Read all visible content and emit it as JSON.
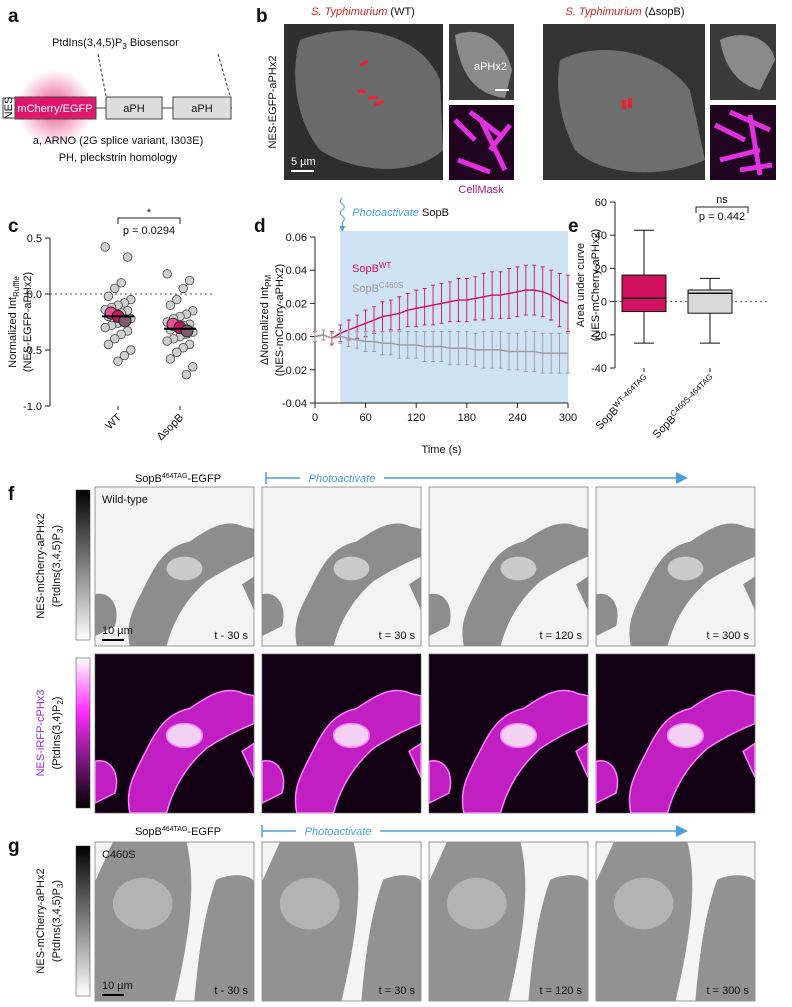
{
  "panel_letters": [
    "a",
    "b",
    "c",
    "d",
    "e",
    "f",
    "g"
  ],
  "panel_a": {
    "title": [
      "PtdIns(3,4,5)P",
      "3",
      " Biosensor"
    ],
    "nes": "NES",
    "fluor": "mCherry/EGFP",
    "domains": [
      "aPH",
      "aPH"
    ],
    "caption": [
      "a, ARNO (2G splice variant, I303E)",
      "PH, pleckstrin homology"
    ]
  },
  "panel_b": {
    "conditions": [
      {
        "species": "S. Typhimurium",
        "strain": " (WT)"
      },
      {
        "species": "S. Typhimurium",
        "strain": " (ΔsopB)"
      }
    ],
    "row_label": "NES-EGFP-aPHx2",
    "inset_labels": [
      "aPHx2",
      "CellMask"
    ],
    "scale_bar": "5 µm"
  },
  "chart_data": [
    {
      "type": "dot",
      "categories": [
        "WT",
        "ΔsopB"
      ],
      "points": [
        [
          0.42,
          0.33,
          0.1,
          0.05,
          -0.02,
          -0.05,
          -0.08,
          -0.1,
          -0.12,
          -0.14,
          -0.15,
          -0.17,
          -0.18,
          -0.2,
          -0.22,
          -0.24,
          -0.26,
          -0.28,
          -0.3,
          -0.33,
          -0.36,
          -0.4,
          -0.45,
          -0.5,
          -0.55,
          -0.6
        ],
        [
          0.18,
          0.12,
          0.05,
          -0.05,
          -0.1,
          -0.15,
          -0.18,
          -0.2,
          -0.22,
          -0.25,
          -0.27,
          -0.28,
          -0.3,
          -0.32,
          -0.34,
          -0.36,
          -0.38,
          -0.4,
          -0.42,
          -0.45,
          -0.48,
          -0.52,
          -0.58,
          -0.65,
          -0.72
        ]
      ],
      "replicate_means": [
        [
          -0.17,
          -0.2,
          -0.24
        ],
        [
          -0.27,
          -0.3,
          -0.33
        ]
      ],
      "replicate_colors": [
        "#e84f95",
        "#c8185e",
        "#7d5a6c"
      ],
      "means": [
        -0.2,
        -0.31
      ],
      "ylim": [
        -1.0,
        0.5
      ],
      "yticks": [
        {
          "value": -1,
          "label": "-1.0"
        },
        {
          "value": -0.5,
          "label": "-0.5"
        },
        {
          "value": 0,
          "label": "0.0"
        },
        {
          "value": 0.5,
          "label": "0.5"
        }
      ],
      "ylabel": [
        "Normalized Int",
        "Ruffle"
      ],
      "ylabel2": "(NES-EGFP-aPHx2)",
      "reference_line": 0,
      "significance": "*",
      "p_value": "p = 0.0294"
    },
    {
      "type": "line",
      "x": [
        0,
        10,
        20,
        30,
        40,
        50,
        60,
        70,
        80,
        90,
        100,
        110,
        120,
        130,
        140,
        150,
        160,
        170,
        180,
        190,
        200,
        210,
        220,
        230,
        240,
        250,
        260,
        270,
        280,
        290,
        300
      ],
      "series": [
        {
          "name": "SopB",
          "name_sup": "WT",
          "color": "#d0105f",
          "values": [
            0,
            0.001,
            -0.001,
            0.002,
            0.004,
            0.006,
            0.008,
            0.01,
            0.012,
            0.013,
            0.014,
            0.016,
            0.017,
            0.018,
            0.019,
            0.02,
            0.021,
            0.022,
            0.022,
            0.023,
            0.024,
            0.025,
            0.025,
            0.026,
            0.027,
            0.028,
            0.028,
            0.027,
            0.025,
            0.022,
            0.02
          ],
          "errors": [
            0.003,
            0.003,
            0.004,
            0.005,
            0.006,
            0.007,
            0.008,
            0.008,
            0.009,
            0.009,
            0.01,
            0.01,
            0.011,
            0.011,
            0.012,
            0.012,
            0.012,
            0.013,
            0.013,
            0.013,
            0.014,
            0.014,
            0.014,
            0.015,
            0.015,
            0.015,
            0.015,
            0.015,
            0.015,
            0.016,
            0.017
          ]
        },
        {
          "name": "SopB",
          "name_sup": "C460S",
          "color": "#9a9a9a",
          "values": [
            0,
            0.001,
            -0.001,
            0,
            -0.001,
            -0.002,
            -0.003,
            -0.003,
            -0.004,
            -0.004,
            -0.005,
            -0.005,
            -0.005,
            -0.006,
            -0.006,
            -0.006,
            -0.007,
            -0.007,
            -0.007,
            -0.008,
            -0.008,
            -0.008,
            -0.008,
            -0.009,
            -0.009,
            -0.009,
            -0.009,
            -0.01,
            -0.01,
            -0.01,
            -0.01
          ],
          "errors": [
            0.003,
            0.003,
            0.003,
            0.004,
            0.005,
            0.005,
            0.006,
            0.006,
            0.007,
            0.007,
            0.008,
            0.008,
            0.008,
            0.009,
            0.009,
            0.009,
            0.01,
            0.01,
            0.01,
            0.01,
            0.011,
            0.011,
            0.011,
            0.011,
            0.011,
            0.012,
            0.012,
            0.012,
            0.012,
            0.012,
            0.012
          ]
        }
      ],
      "xlim": [
        0,
        300
      ],
      "xticks": [
        0,
        60,
        120,
        180,
        240,
        300
      ],
      "ylim": [
        -0.04,
        0.06
      ],
      "yticks": [
        -0.04,
        -0.02,
        {
          "value": 0,
          "label": "0.00"
        },
        0.02,
        0.04,
        0.06
      ],
      "xlabel": "Time (s)",
      "ylabel": [
        "ΔNormalized Int",
        "PM"
      ],
      "ylabel2": "(NES-mCherry-aPHx2)",
      "highlight": [
        30,
        300
      ],
      "highlight_color": "#cfe3f7",
      "annotation": [
        "Photoactivate",
        " SopB"
      ]
    },
    {
      "type": "box",
      "categories": [
        "SopB",
        "SopB"
      ],
      "category_sups": [
        "WT-464TAG",
        "C460S-464TAG"
      ],
      "boxes": [
        {
          "min": -25,
          "q1": -6,
          "median": 2,
          "q3": 16,
          "max": 43,
          "color": "#d1105f"
        },
        {
          "min": -25,
          "q1": -7,
          "median": 5,
          "q3": 7,
          "max": 14,
          "color": "#d9d9d9"
        }
      ],
      "ylim": [
        -40,
        60
      ],
      "yticks": [
        -40,
        -20,
        0,
        20,
        40,
        60
      ],
      "ylabel": "Area under curve",
      "ylabel2": "(NES-mCherry-aPHx2)",
      "reference_line": 0,
      "significance": "ns",
      "p_value": "p = 0.442"
    }
  ],
  "panel_f": {
    "construct": [
      "SopB",
      "464TAG",
      "-EGFP"
    ],
    "action": "Photoactivate",
    "condition": "Wild-type",
    "times": [
      "t - 30 s",
      "t = 30 s",
      "t = 120 s",
      "t = 300 s"
    ],
    "scale_bar": "10 µm",
    "rows": [
      {
        "label": "NES-mCherry-aPHx2",
        "lipid": [
          "(PtdIns(3,4,5)P",
          "3",
          ")"
        ]
      },
      {
        "label": "NES-iRFP-cPHx3",
        "lipid": [
          "(PtdIns(3,4)P",
          "2",
          ")"
        ]
      }
    ]
  },
  "panel_g": {
    "construct": [
      "SopB",
      "464TAG",
      "-EGFP"
    ],
    "action": "Photoactivate",
    "condition": "C460S",
    "times": [
      "t - 30 s",
      "t = 30 s",
      "t = 120 s",
      "t = 300 s"
    ],
    "scale_bar": "10 µm",
    "row": {
      "label": "NES-mCherry-aPHx2",
      "lipid": [
        "(PtdIns(3,4,5)P",
        "3",
        ")"
      ]
    }
  }
}
